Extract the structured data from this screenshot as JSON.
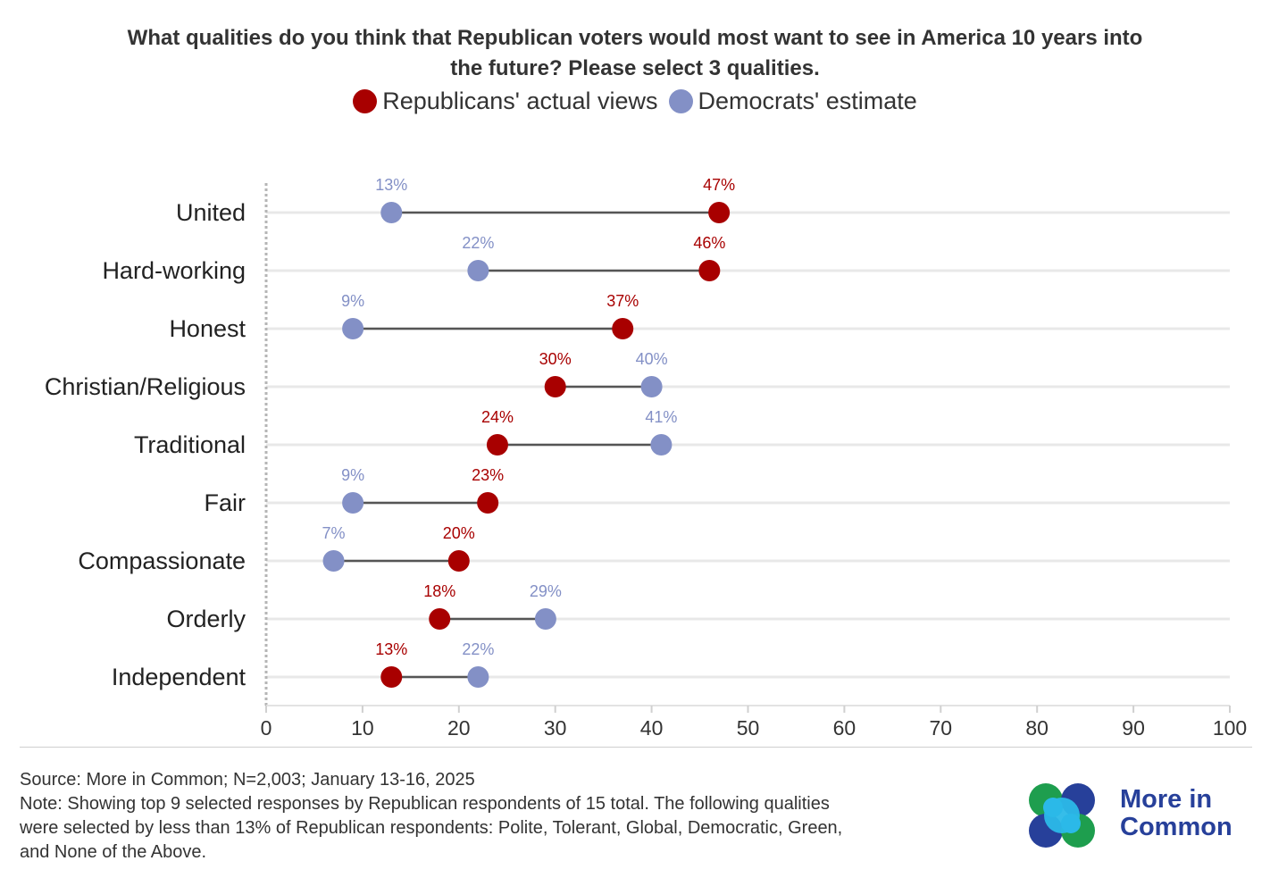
{
  "title_lines": [
    "What qualities do you think that Republican voters would most want to see in America 10 years into",
    "the future? Please select 3 qualities."
  ],
  "legend": [
    {
      "label": "Republicans' actual views",
      "color": "#a80000"
    },
    {
      "label": "Democrats' estimate",
      "color": "#8390c6"
    }
  ],
  "chart_data": {
    "type": "dumbbell",
    "xlim": [
      0,
      100
    ],
    "x_ticks": [
      "0",
      "10",
      "20",
      "30",
      "40",
      "50",
      "60",
      "70",
      "80",
      "90",
      "100"
    ],
    "categories": [
      "United",
      "Hard-working",
      "Honest",
      "Christian/Religious",
      "Traditional",
      "Fair",
      "Compassionate",
      "Orderly",
      "Independent"
    ],
    "series": [
      {
        "name": "Republicans' actual views",
        "color": "#a80000",
        "values": [
          47,
          46,
          37,
          30,
          24,
          23,
          20,
          18,
          13
        ],
        "labels": [
          "47%",
          "46%",
          "37%",
          "30%",
          "24%",
          "23%",
          "20%",
          "18%",
          "13%"
        ]
      },
      {
        "name": "Democrats' estimate",
        "color": "#8390c6",
        "values": [
          13,
          22,
          9,
          40,
          41,
          9,
          7,
          29,
          22
        ],
        "labels": [
          "13%",
          "22%",
          "9%",
          "40%",
          "41%",
          "9%",
          "7%",
          "29%",
          "22%"
        ]
      }
    ],
    "connector_color": "#555555",
    "grid": true
  },
  "footer": {
    "source": "Source: More in Common; N=2,003; January 13-16, 2025",
    "note_lines": [
      "Note: Showing top 9 selected responses by Republican respondents of 15 total. The following qualities",
      "were selected by less than 13% of Republican respondents: Polite, Tolerant, Global, Democratic, Green,",
      "and None of the Above."
    ]
  },
  "logo": {
    "line1": "More in",
    "line2": "Common",
    "colors": [
      "#1e9e4e",
      "#27409a",
      "#2bb9e8"
    ]
  }
}
